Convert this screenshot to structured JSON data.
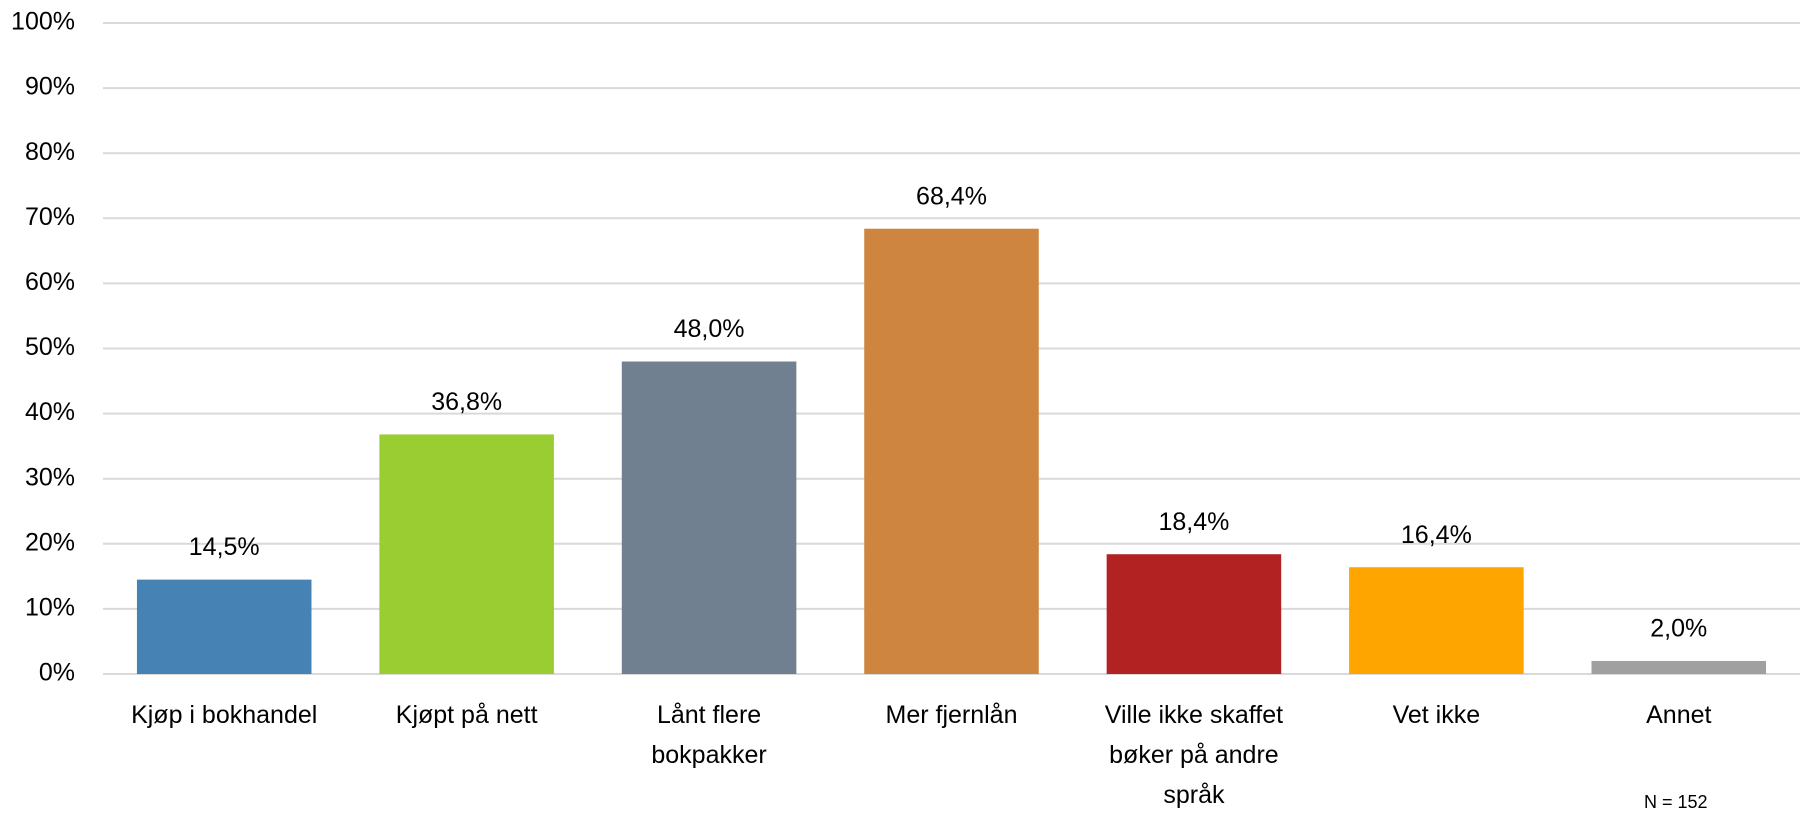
{
  "chart_data": {
    "type": "bar",
    "categories": [
      "Kjøp i bokhandel",
      "Kjøpt på nett",
      "Lånt flere bokpakker",
      "Mer fjernlån",
      "Ville ikke skaffet bøker på andre språk",
      "Vet ikke",
      "Annet"
    ],
    "values": [
      14.5,
      36.8,
      48.0,
      68.4,
      18.4,
      16.4,
      2.0
    ],
    "value_labels": [
      "14,5%",
      "36,8%",
      "48,0%",
      "68,4%",
      "18,4%",
      "16,4%",
      "2,0%"
    ],
    "colors": [
      "#4682b4",
      "#9acd32",
      "#708090",
      "#cd853f",
      "#b22222",
      "#ffa500",
      "#a0a0a0"
    ],
    "ylim": [
      0,
      100
    ],
    "yticks": [
      {
        "value": 0,
        "label": "0%"
      },
      {
        "value": 10,
        "label": "10%"
      },
      {
        "value": 20,
        "label": "20%"
      },
      {
        "value": 30,
        "label": "30%"
      },
      {
        "value": 40,
        "label": "40%"
      },
      {
        "value": 50,
        "label": "50%"
      },
      {
        "value": 60,
        "label": "60%"
      },
      {
        "value": 70,
        "label": "70%"
      },
      {
        "value": 80,
        "label": "80%"
      },
      {
        "value": 90,
        "label": "90%"
      },
      {
        "value": 100,
        "label": "100%"
      }
    ],
    "grid": true,
    "annotation": "N = 152"
  }
}
